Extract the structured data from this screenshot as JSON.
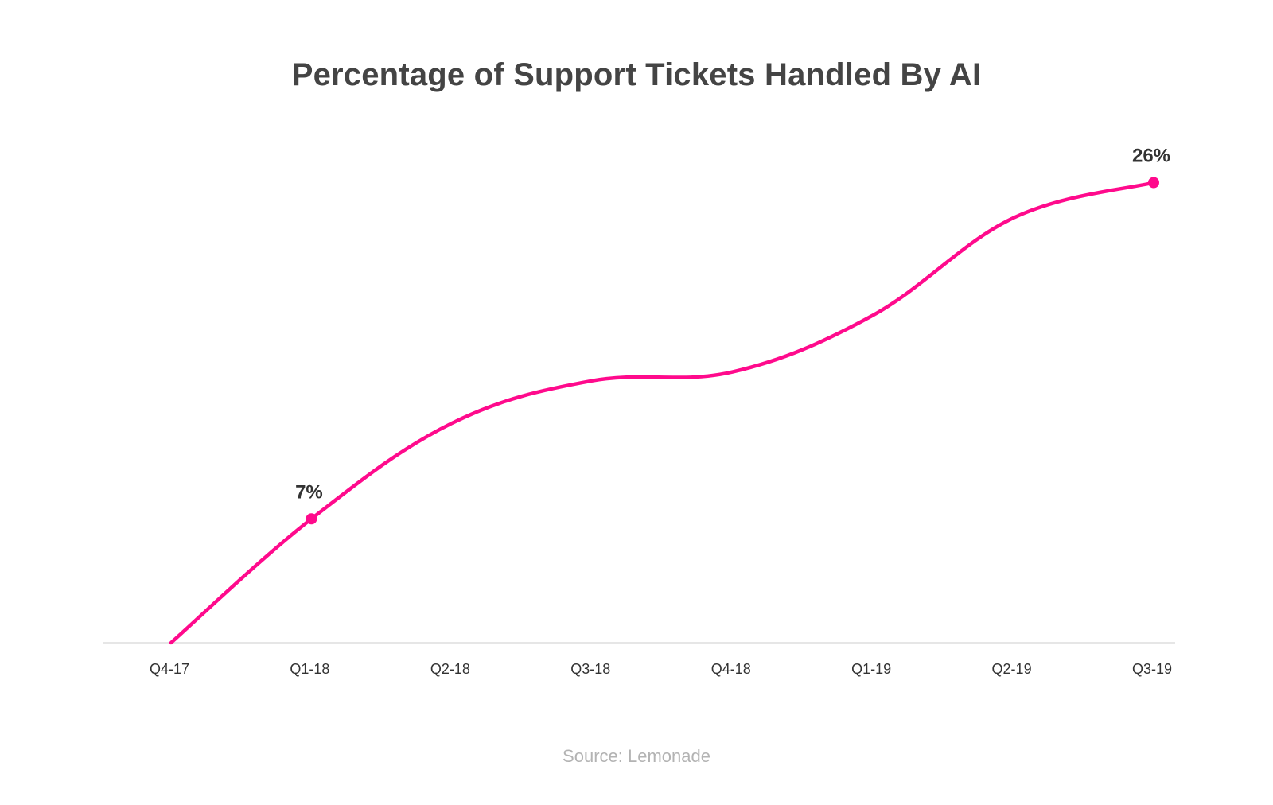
{
  "chart_data": {
    "type": "line",
    "title": "Percentage of Support Tickets Handled By AI",
    "xlabel": "",
    "ylabel": "",
    "categories": [
      "Q4-17",
      "Q1-18",
      "Q2-18",
      "Q3-18",
      "Q4-18",
      "Q1-19",
      "Q2-19",
      "Q3-19"
    ],
    "series": [
      {
        "values": [
          0,
          7,
          12.4,
          14.8,
          15.3,
          18.5,
          24.0,
          26
        ]
      }
    ],
    "annotations": [
      {
        "category": "Q1-18",
        "value": 7,
        "text": "7%"
      },
      {
        "category": "Q3-19",
        "value": 26,
        "text": "26%"
      }
    ],
    "ylim": [
      0,
      28
    ],
    "grid": false,
    "line_color": "#ff0a8c",
    "baseline_color": "#e6e6e6"
  },
  "source": "Source: Lemonade"
}
